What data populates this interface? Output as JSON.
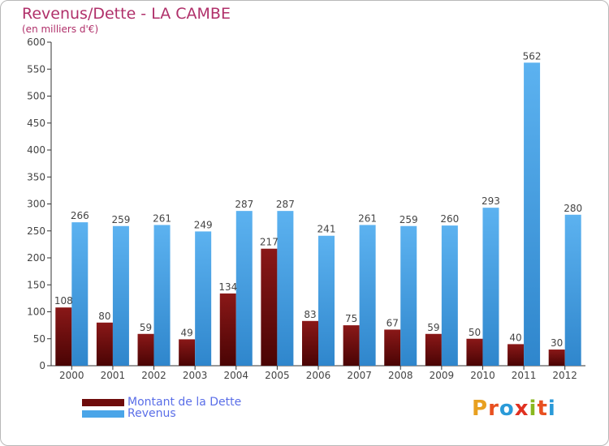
{
  "title": "Revenus/Dette - LA CAMBE",
  "subtitle": "(en milliers d'€)",
  "legend": [
    {
      "label": "Montant de la Dette",
      "color": "#6e0b0b"
    },
    {
      "label": "Revenus",
      "color": "#4aa5e8"
    }
  ],
  "logo": {
    "text": "Proxiti",
    "colors": [
      "#e8a020",
      "#e85020",
      "#2a9ad8",
      "#e03020",
      "#8ab820",
      "#e85020",
      "#2a9ad8"
    ]
  },
  "colors": {
    "dette": "#7a1010",
    "revenus": "#4aa5e8",
    "label": "#444444",
    "axis": "#333333"
  },
  "chart_data": {
    "type": "bar",
    "title": "Revenus/Dette - LA CAMBE",
    "subtitle": "(en milliers d'€)",
    "categories": [
      "2000",
      "2001",
      "2002",
      "2003",
      "2004",
      "2005",
      "2006",
      "2007",
      "2008",
      "2009",
      "2010",
      "2011",
      "2012"
    ],
    "series": [
      {
        "name": "Montant de la Dette",
        "values": [
          108,
          80,
          59,
          49,
          134,
          217,
          83,
          75,
          67,
          59,
          50,
          40,
          30
        ]
      },
      {
        "name": "Revenus",
        "values": [
          266,
          259,
          261,
          249,
          287,
          287,
          241,
          261,
          259,
          260,
          293,
          562,
          280
        ]
      }
    ],
    "ylim": [
      0,
      600
    ],
    "yticks": [
      0,
      50,
      100,
      150,
      200,
      250,
      300,
      350,
      400,
      450,
      500,
      550,
      600
    ],
    "grid": false,
    "legend_position": "bottom-left"
  }
}
